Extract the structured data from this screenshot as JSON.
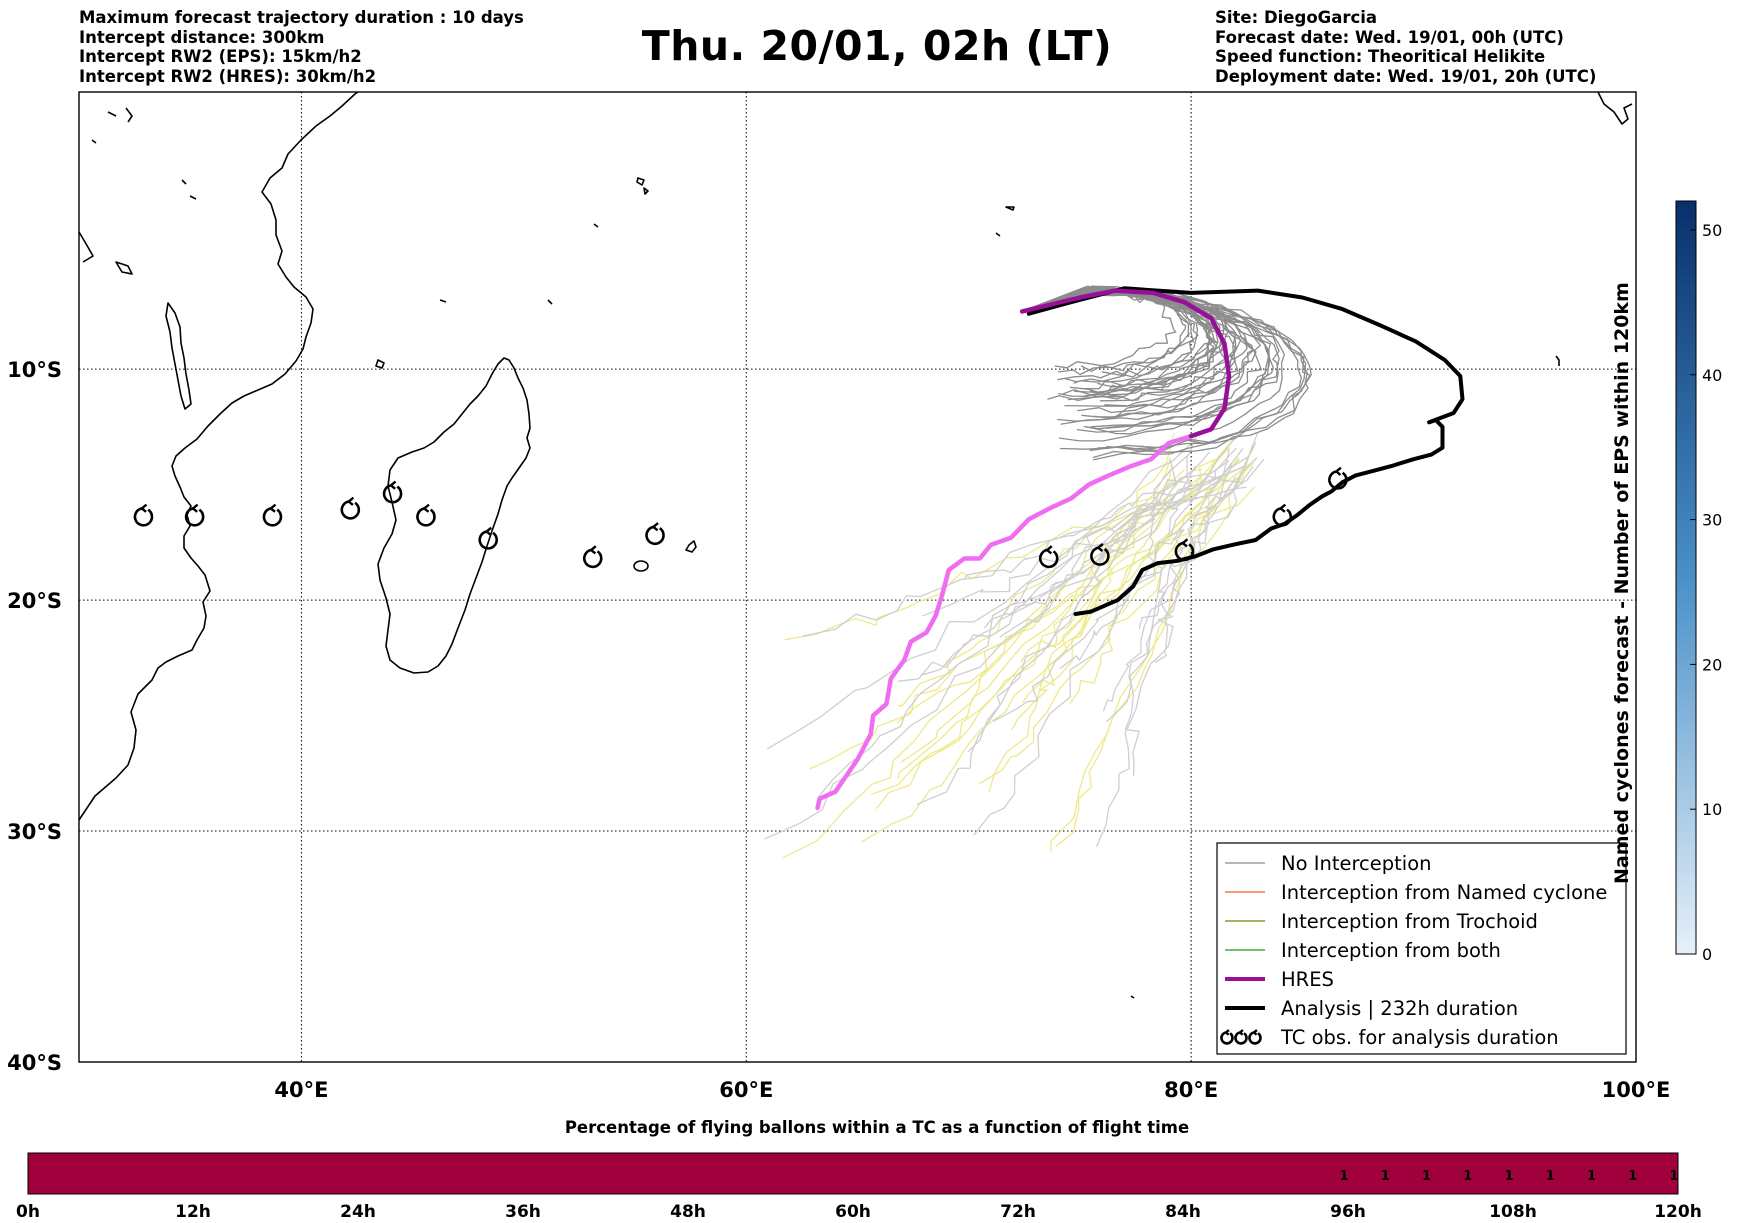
{
  "header": {
    "left_lines": [
      "Maximum forecast trajectory duration : 10 days",
      "Intercept distance: 300km",
      "Intercept RW2 (EPS):  15km/h2",
      "Intercept RW2 (HRES): 30km/h2"
    ],
    "title": "Thu. 20/01, 02h (LT)",
    "right_lines": [
      "Site: DiegoGarcia",
      "Forecast date: Wed. 19/01, 00h (UTC)",
      "Speed function: Theoritical Helikite",
      "Deployment date: Wed. 19/01, 20h (UTC)"
    ]
  },
  "map": {
    "lon_range": [
      30,
      100
    ],
    "lat_range": [
      -40,
      2
    ],
    "lon_ticks": [
      {
        "value": 40,
        "label": "40°E"
      },
      {
        "value": 60,
        "label": "60°E"
      },
      {
        "value": 80,
        "label": "80°E"
      },
      {
        "value": 100,
        "label": "100°E"
      }
    ],
    "lat_ticks": [
      {
        "value": -10,
        "label": "10°S"
      },
      {
        "value": -20,
        "label": "20°S"
      },
      {
        "value": -30,
        "label": "30°S"
      },
      {
        "value": -40,
        "label": "40°S"
      }
    ],
    "colors": {
      "no_interception": "#8c8c8c",
      "named_cyclone": "#ff5a1f",
      "trochoid": "#7f7a12",
      "both": "#1f9a1f",
      "hres": "#9a0f9a",
      "hres_past": "#f06cf0",
      "analysis": "#000000",
      "ensemble_light": "#cfcfcf",
      "ensemble_yellow": "#eee98a"
    },
    "hres_track": [
      [
        63.2,
        -29.0
      ],
      [
        63.3,
        -28.6
      ],
      [
        64.0,
        -28.3
      ],
      [
        64.5,
        -27.6
      ],
      [
        65.0,
        -26.9
      ],
      [
        65.6,
        -25.8
      ],
      [
        65.7,
        -25.0
      ],
      [
        66.3,
        -24.5
      ],
      [
        66.5,
        -23.4
      ],
      [
        67.1,
        -22.6
      ],
      [
        67.4,
        -21.8
      ],
      [
        68.1,
        -21.4
      ],
      [
        68.5,
        -20.7
      ],
      [
        68.8,
        -19.8
      ],
      [
        69.1,
        -18.7
      ],
      [
        69.8,
        -18.2
      ],
      [
        70.5,
        -18.2
      ],
      [
        71.0,
        -17.6
      ],
      [
        71.9,
        -17.3
      ],
      [
        72.7,
        -16.5
      ],
      [
        73.7,
        -16.0
      ],
      [
        74.6,
        -15.6
      ],
      [
        75.4,
        -15.0
      ],
      [
        76.3,
        -14.6
      ],
      [
        77.3,
        -14.2
      ],
      [
        78.2,
        -13.9
      ],
      [
        79.0,
        -13.2
      ],
      [
        80.0,
        -12.9
      ],
      [
        80.9,
        -12.6
      ],
      [
        81.5,
        -11.7
      ],
      [
        81.7,
        -10.3
      ],
      [
        81.5,
        -8.9
      ],
      [
        80.9,
        -7.8
      ],
      [
        79.7,
        -7.1
      ],
      [
        78.3,
        -6.7
      ],
      [
        76.6,
        -6.6
      ],
      [
        75.0,
        -6.9
      ],
      [
        73.7,
        -7.2
      ],
      [
        72.4,
        -7.5
      ]
    ],
    "hres_split_index": 27,
    "analysis_track": [
      [
        74.8,
        -20.6
      ],
      [
        75.5,
        -20.5
      ],
      [
        76.7,
        -20.0
      ],
      [
        77.4,
        -19.4
      ],
      [
        77.8,
        -18.7
      ],
      [
        78.5,
        -18.4
      ],
      [
        79.4,
        -18.3
      ],
      [
        80.2,
        -18.1
      ],
      [
        81.0,
        -17.8
      ],
      [
        81.9,
        -17.6
      ],
      [
        82.9,
        -17.4
      ],
      [
        83.6,
        -16.9
      ],
      [
        84.2,
        -16.7
      ],
      [
        84.8,
        -16.3
      ],
      [
        85.3,
        -15.9
      ],
      [
        85.9,
        -15.5
      ],
      [
        86.3,
        -15.3
      ],
      [
        86.8,
        -14.9
      ],
      [
        87.4,
        -14.6
      ],
      [
        88.2,
        -14.4
      ],
      [
        89.0,
        -14.2
      ],
      [
        90.0,
        -13.9
      ],
      [
        90.8,
        -13.7
      ],
      [
        91.3,
        -13.4
      ],
      [
        91.3,
        -12.5
      ],
      [
        91.0,
        -12.2
      ],
      [
        90.7,
        -12.3
      ],
      [
        91.8,
        -11.9
      ],
      [
        92.2,
        -11.3
      ],
      [
        92.1,
        -10.3
      ],
      [
        91.4,
        -9.6
      ],
      [
        90.1,
        -8.8
      ],
      [
        88.5,
        -8.1
      ],
      [
        86.8,
        -7.4
      ],
      [
        85.0,
        -6.9
      ],
      [
        83.0,
        -6.6
      ],
      [
        80.0,
        -6.7
      ],
      [
        77.0,
        -6.5
      ],
      [
        74.6,
        -7.1
      ],
      [
        72.7,
        -7.6
      ]
    ],
    "tc_obs": [
      [
        32.9,
        -16.4
      ],
      [
        35.2,
        -16.4
      ],
      [
        38.7,
        -16.4
      ],
      [
        42.2,
        -16.1
      ],
      [
        44.1,
        -15.4
      ],
      [
        45.6,
        -16.4
      ],
      [
        48.4,
        -17.4
      ],
      [
        53.1,
        -18.2
      ],
      [
        55.9,
        -17.2
      ],
      [
        73.6,
        -18.2
      ],
      [
        75.9,
        -18.1
      ],
      [
        79.7,
        -17.9
      ],
      [
        84.1,
        -16.4
      ],
      [
        86.6,
        -14.8
      ]
    ],
    "legend": [
      {
        "label": "No Interception",
        "kind": "thin",
        "color": "no_interception"
      },
      {
        "label": "Interception from Named cyclone",
        "kind": "thin",
        "color": "named_cyclone"
      },
      {
        "label": "Interception from Trochoid",
        "kind": "thin",
        "color": "trochoid"
      },
      {
        "label": "Interception from both",
        "kind": "thin",
        "color": "both"
      },
      {
        "label": "HRES",
        "kind": "thick",
        "color": "hres"
      },
      {
        "label": "Analysis | 232h duration",
        "kind": "thick",
        "color": "analysis"
      },
      {
        "label": "TC obs. for analysis duration",
        "kind": "marker",
        "color": "analysis"
      }
    ]
  },
  "colorbar": {
    "label": "Named cyclones forecast - Number of EPS within 120km",
    "min": 0,
    "max": 52,
    "ticks": [
      0,
      10,
      20,
      30,
      40,
      50
    ],
    "color_low": "#e6f0fa",
    "color_high": "#08306b"
  },
  "timebar": {
    "title": "Percentage of flying ballons within a TC as a function of flight time",
    "ticks": [
      "0h",
      "12h",
      "24h",
      "36h",
      "48h",
      "60h",
      "72h",
      "84h",
      "96h",
      "108h",
      "120h"
    ],
    "max_hours": 120,
    "fill_color": "#a0003c",
    "cell_hours": [
      96,
      99,
      102,
      105,
      108,
      111,
      114,
      117,
      120
    ],
    "cell_value": "1"
  }
}
